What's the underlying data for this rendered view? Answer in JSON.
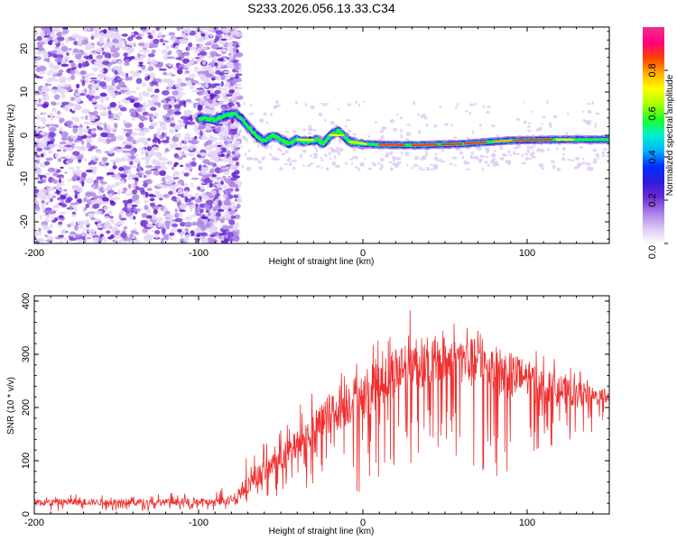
{
  "colors": {
    "snr_line": "#f03030",
    "spectrogram_scatter": "#6a2ad6",
    "frame": "#000000"
  },
  "chart_data": [
    {
      "type": "heatmap",
      "title": "S233.2026.056.13.33.C34",
      "xlabel": "Height of straight line (km)",
      "ylabel": "Frequency (Hz)",
      "xlim": [
        -200,
        150
      ],
      "ylim": [
        -25,
        25
      ],
      "x_ticks": [
        -200,
        -100,
        0,
        100
      ],
      "x_tick_labels": [
        "-200",
        "-100",
        "0",
        "100"
      ],
      "y_ticks": [
        20,
        10,
        0,
        -10,
        -20
      ],
      "y_tick_labels": [
        "20",
        "10",
        "0",
        "-10",
        "-20"
      ],
      "colorbar": {
        "label": "Normalized spectral amplitude",
        "range": [
          0,
          1
        ],
        "ticks": [
          0.0,
          0.2,
          0.4,
          0.6,
          0.8
        ],
        "tick_labels": [
          "0.0",
          "0.2",
          "0.4",
          "0.6",
          "0.8"
        ],
        "colors": [
          "#ffffff",
          "#d9c6f5",
          "#a77fe8",
          "#6a2ad6",
          "#2f1be0",
          "#0030ff",
          "#00b5ff",
          "#00f0d0",
          "#18ff28",
          "#aaff00",
          "#ffff00",
          "#ffb000",
          "#ff4000",
          "#ff0080",
          "#f0308a"
        ]
      },
      "ridge": {
        "description_points": [
          {
            "x": -100,
            "y": 4
          },
          {
            "x": -90,
            "y": 3.5
          },
          {
            "x": -85,
            "y": 4.5
          },
          {
            "x": -78,
            "y": 5
          },
          {
            "x": -74,
            "y": 4
          },
          {
            "x": -70,
            "y": 2
          },
          {
            "x": -65,
            "y": 0
          },
          {
            "x": -60,
            "y": -1.5
          },
          {
            "x": -55,
            "y": 0
          },
          {
            "x": -50,
            "y": -1
          },
          {
            "x": -45,
            "y": -2
          },
          {
            "x": -40,
            "y": -1
          },
          {
            "x": -35,
            "y": -1.5
          },
          {
            "x": -28,
            "y": -1
          },
          {
            "x": -24,
            "y": -2
          },
          {
            "x": -20,
            "y": 0
          },
          {
            "x": -15,
            "y": 1
          },
          {
            "x": -12,
            "y": 0
          },
          {
            "x": -8,
            "y": -1.5
          },
          {
            "x": 0,
            "y": -2
          },
          {
            "x": 10,
            "y": -2.2
          },
          {
            "x": 30,
            "y": -2.3
          },
          {
            "x": 60,
            "y": -2
          },
          {
            "x": 90,
            "y": -1.2
          },
          {
            "x": 120,
            "y": -1
          },
          {
            "x": 150,
            "y": -1
          }
        ],
        "peak_amplitude": 0.95
      }
    },
    {
      "type": "line",
      "xlabel": "Height of straight line (km)",
      "ylabel": "SNR (10 * v/v)",
      "xlim": [
        -200,
        150
      ],
      "ylim": [
        0,
        410
      ],
      "x_ticks": [
        -200,
        -100,
        0,
        100
      ],
      "x_tick_labels": [
        "-200",
        "-100",
        "0",
        "100"
      ],
      "y_ticks": [
        0,
        100,
        200,
        300,
        400
      ],
      "y_tick_labels": [
        "0",
        "100",
        "200",
        "300",
        "400"
      ],
      "series": [
        {
          "name": "SNR",
          "envelope_x": [
            -200,
            -180,
            -160,
            -140,
            -120,
            -100,
            -90,
            -80,
            -75,
            -70,
            -60,
            -50,
            -40,
            -30,
            -20,
            -10,
            0,
            10,
            20,
            30,
            40,
            50,
            60,
            70,
            80,
            90,
            100,
            110,
            120,
            130,
            140,
            150
          ],
          "envelope_upper": [
            45,
            40,
            38,
            38,
            40,
            42,
            45,
            60,
            90,
            110,
            140,
            160,
            200,
            240,
            280,
            300,
            310,
            340,
            360,
            390,
            350,
            370,
            360,
            350,
            345,
            340,
            330,
            310,
            300,
            280,
            250,
            240
          ],
          "envelope_lower": [
            5,
            5,
            5,
            5,
            5,
            5,
            5,
            8,
            10,
            15,
            20,
            30,
            40,
            50,
            50,
            40,
            40,
            60,
            80,
            90,
            100,
            120,
            100,
            70,
            70,
            80,
            100,
            120,
            130,
            140,
            150,
            150
          ],
          "baseline": [
            22,
            22,
            22,
            22,
            22,
            22,
            22,
            28,
            40,
            55,
            80,
            100,
            130,
            160,
            190,
            210,
            220,
            250,
            270,
            290,
            280,
            290,
            290,
            280,
            270,
            260,
            250,
            240,
            230,
            225,
            220,
            220
          ]
        }
      ]
    }
  ]
}
